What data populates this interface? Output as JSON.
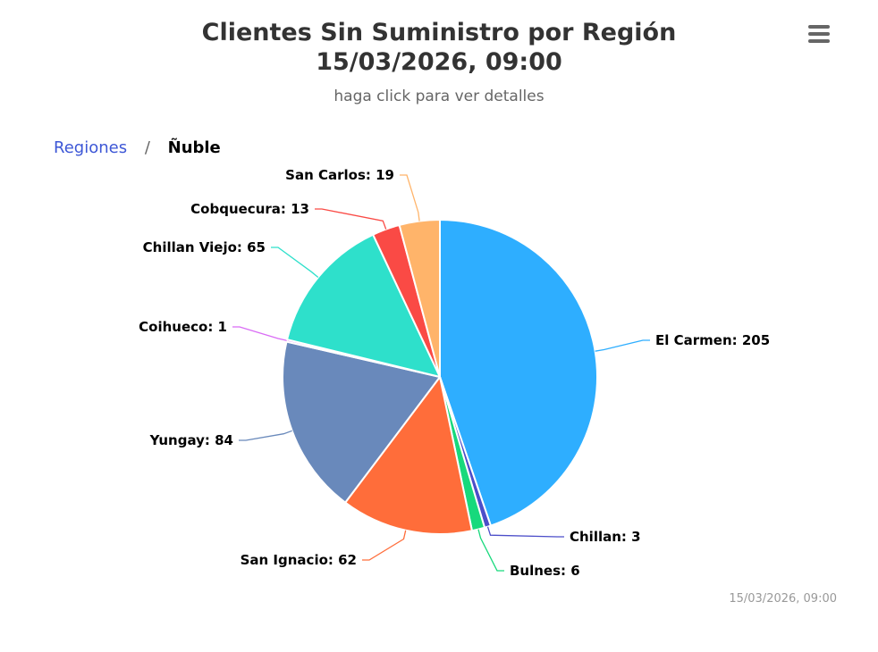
{
  "chart_data": {
    "type": "pie",
    "title": [
      "Clientes Sin Suministro por Región",
      "15/03/2026, 09:00"
    ],
    "subtitle": "haga click para ver detalles",
    "slices": [
      {
        "name": "El Carmen",
        "value": 205,
        "label": "El Carmen: 205",
        "color": "#2eaeff"
      },
      {
        "name": "Chillan",
        "value": 3,
        "label": "Chillan: 3",
        "color": "#4c4ec9"
      },
      {
        "name": "Bulnes",
        "value": 6,
        "label": "Bulnes: 6",
        "color": "#17d97c"
      },
      {
        "name": "San Ignacio",
        "value": 62,
        "label": "San Ignacio: 62",
        "color": "#ff6d3a"
      },
      {
        "name": "Yungay",
        "value": 84,
        "label": "Yungay: 84",
        "color": "#6989bb"
      },
      {
        "name": "Coihueco",
        "value": 1,
        "label": "Coihueco: 1",
        "color": "#d96bf5"
      },
      {
        "name": "Chillan Viejo",
        "value": 65,
        "label": "Chillan Viejo: 65",
        "color": "#2ee0cb"
      },
      {
        "name": "Cobquecura",
        "value": 13,
        "label": "Cobquecura: 13",
        "color": "#fa4a45"
      },
      {
        "name": "San Carlos",
        "value": 19,
        "label": "San Carlos: 19",
        "color": "#ffb46a"
      }
    ]
  },
  "breadcrumb": {
    "parent": "Regiones",
    "separator": "/",
    "current": "Ñuble"
  },
  "menu": {
    "icon": "hamburger-menu-icon"
  },
  "credits": "15/03/2026, 09:00"
}
